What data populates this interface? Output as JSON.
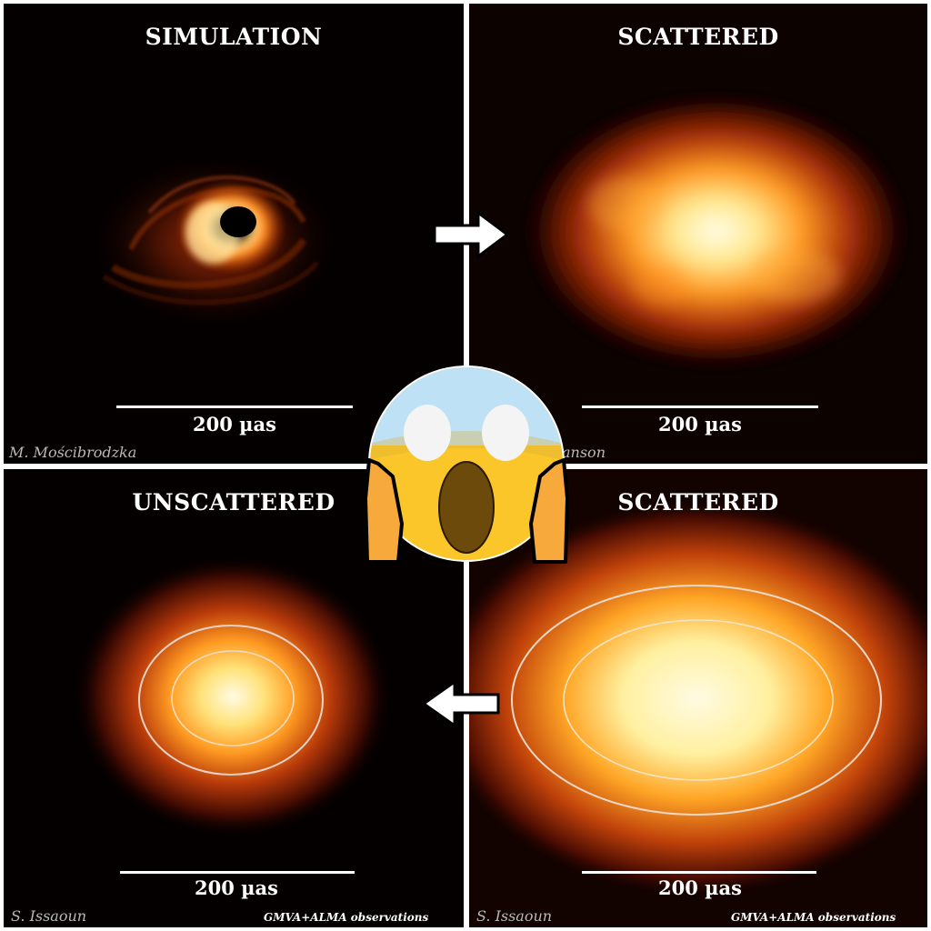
{
  "panels": {
    "top_left": {
      "title": "SIMULATION",
      "scale": "200 µas",
      "credit": "M. Mościbrodzka"
    },
    "top_right": {
      "title": "SCATTERED",
      "scale": "200 µas",
      "credit": "anson"
    },
    "bottom_left": {
      "title": "UNSCATTERED",
      "scale": "200 µas",
      "credit": "S. Issaoun",
      "observations": "GMVA+ALMA observations"
    },
    "bottom_right": {
      "title": "SCATTERED",
      "scale": "200 µas",
      "credit": "S. Issaoun",
      "observations": "GMVA+ALMA observations"
    }
  },
  "arrows": {
    "top": "right-arrow",
    "bottom": "left-arrow"
  },
  "overlay": {
    "icon": "screaming-face-emoji"
  },
  "colors": {
    "background": "#ffffff",
    "panel": "#050000",
    "glow_core": "#fff6c8",
    "glow_mid": "#ff9a1e",
    "glow_edge": "#7a1400"
  }
}
